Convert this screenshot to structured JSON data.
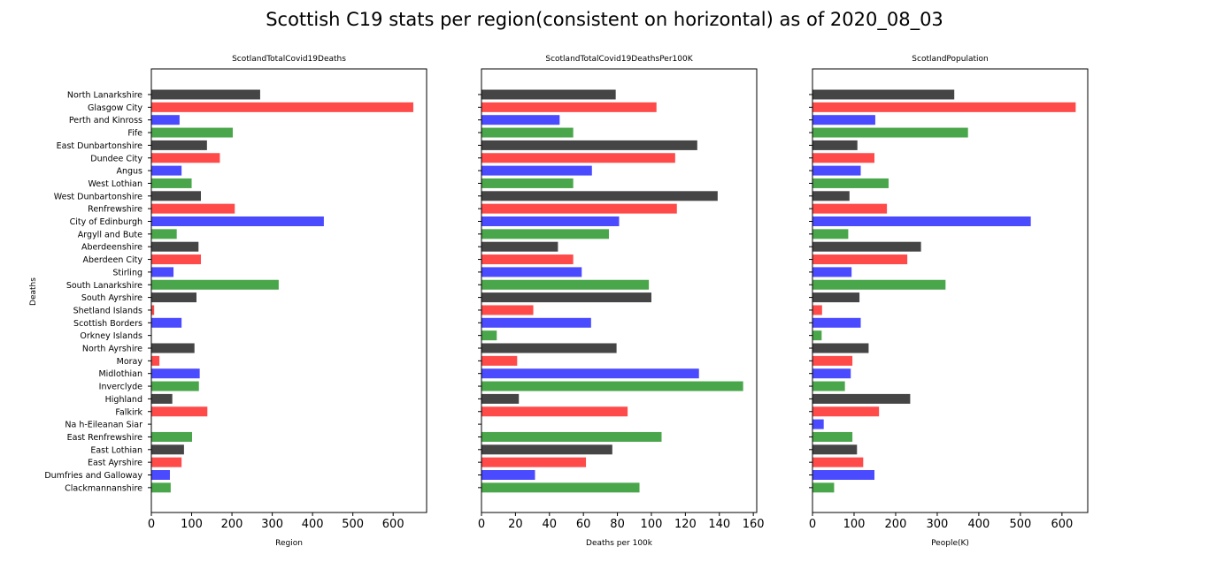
{
  "figure": {
    "title": "Scottish C19 stats per region(consistent on horizontal) as of 2020_08_03",
    "shared_ylabel": "Deaths"
  },
  "colors": [
    "#454545",
    "#ff4a4a",
    "#4a4aff",
    "#4aa64a"
  ],
  "chart_data": [
    {
      "type": "bar",
      "orientation": "horizontal",
      "title": "ScotlandTotalCovid19Deaths",
      "xlabel": "Region",
      "ylabel": "Deaths",
      "xlim": [
        0,
        683
      ],
      "xticks": [
        0,
        100,
        200,
        300,
        400,
        500,
        600
      ],
      "categories": [
        "North Lanarkshire",
        "Glasgow City",
        "Perth and Kinross",
        "Fife",
        "East Dunbartonshire",
        "Dundee City",
        "Angus",
        "West Lothian",
        "West Dunbartonshire",
        "Renfrewshire",
        "City of Edinburgh",
        "Argyll and Bute",
        "Aberdeenshire",
        "Aberdeen City",
        "Stirling",
        "South Lanarkshire",
        "South Ayrshire",
        "Shetland Islands",
        "Scottish Borders",
        "Orkney Islands",
        "North Ayrshire",
        "Moray",
        "Midlothian",
        "Inverclyde",
        "Highland",
        "Falkirk",
        "Na h-Eileanan Siar",
        "East Renfrewshire",
        "East Lothian",
        "East Ayrshire",
        "Dumfries and Galloway",
        "Clackmannanshire"
      ],
      "values": [
        270,
        650,
        70,
        202,
        138,
        170,
        75,
        100,
        123,
        207,
        428,
        63,
        117,
        123,
        55,
        316,
        112,
        7,
        75,
        0,
        107,
        20,
        120,
        118,
        52,
        139,
        0,
        101,
        81,
        75,
        46,
        48
      ]
    },
    {
      "type": "bar",
      "orientation": "horizontal",
      "title": "ScotlandTotalCovid19DeathsPer100K",
      "xlabel": "Deaths per 100k",
      "xlim": [
        0,
        162
      ],
      "xticks": [
        0,
        20,
        40,
        60,
        80,
        100,
        120,
        140,
        160
      ],
      "categories": [
        "North Lanarkshire",
        "Glasgow City",
        "Perth and Kinross",
        "Fife",
        "East Dunbartonshire",
        "Dundee City",
        "Angus",
        "West Lothian",
        "West Dunbartonshire",
        "Renfrewshire",
        "City of Edinburgh",
        "Argyll and Bute",
        "Aberdeenshire",
        "Aberdeen City",
        "Stirling",
        "South Lanarkshire",
        "South Ayrshire",
        "Shetland Islands",
        "Scottish Borders",
        "Orkney Islands",
        "North Ayrshire",
        "Moray",
        "Midlothian",
        "Inverclyde",
        "Highland",
        "Falkirk",
        "Na h-Eileanan Siar",
        "East Renfrewshire",
        "East Lothian",
        "East Ayrshire",
        "Dumfries and Galloway",
        "Clackmannanshire"
      ],
      "values": [
        79,
        103,
        46,
        54,
        127,
        114,
        65,
        54,
        139,
        115,
        81,
        75,
        45,
        54,
        59,
        98.5,
        100,
        30.5,
        64.5,
        9,
        79.5,
        21,
        128,
        154,
        22,
        86,
        0,
        106,
        77,
        61.5,
        31.5,
        93
      ]
    },
    {
      "type": "bar",
      "orientation": "horizontal",
      "title": "ScotlandPopulation",
      "xlabel": "People(K)",
      "xlim": [
        0,
        662
      ],
      "xticks": [
        0,
        100,
        200,
        300,
        400,
        500,
        600
      ],
      "categories": [
        "North Lanarkshire",
        "Glasgow City",
        "Perth and Kinross",
        "Fife",
        "East Dunbartonshire",
        "Dundee City",
        "Angus",
        "West Lothian",
        "West Dunbartonshire",
        "Renfrewshire",
        "City of Edinburgh",
        "Argyll and Bute",
        "Aberdeenshire",
        "Aberdeen City",
        "Stirling",
        "South Lanarkshire",
        "South Ayrshire",
        "Shetland Islands",
        "Scottish Borders",
        "Orkney Islands",
        "North Ayrshire",
        "Moray",
        "Midlothian",
        "Inverclyde",
        "Highland",
        "Falkirk",
        "Na h-Eileanan Siar",
        "East Renfrewshire",
        "East Lothian",
        "East Ayrshire",
        "Dumfries and Galloway",
        "Clackmannanshire"
      ],
      "values": [
        341,
        633,
        151,
        374,
        108,
        149,
        116,
        183,
        89,
        179,
        525,
        86,
        261,
        228,
        94,
        320,
        113,
        23,
        116,
        22,
        135,
        96,
        92,
        78,
        235,
        160,
        27,
        96,
        107,
        122,
        149,
        52
      ]
    }
  ]
}
